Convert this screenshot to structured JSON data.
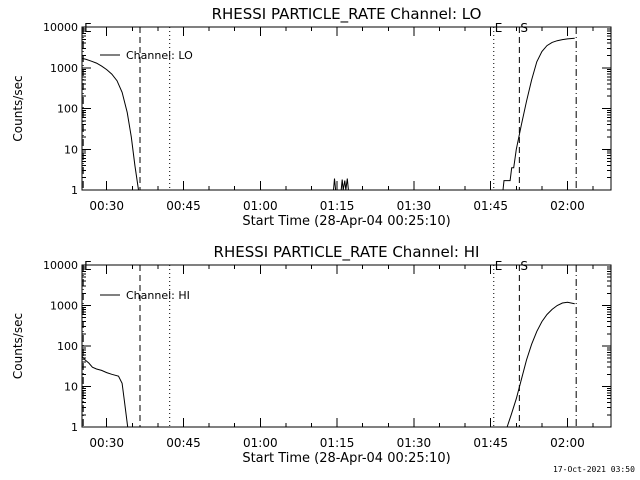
{
  "footer": {
    "timestamp": "17-Oct-2021 03:50"
  },
  "chart_data": [
    {
      "type": "line",
      "title": "RHESSI PARTICLE_RATE Channel: LO",
      "xlabel": "Start Time (28-Apr-04 00:25:10)",
      "ylabel": "Counts/sec",
      "yscale": "log",
      "xlim_minutes": [
        25.17,
        128.5
      ],
      "ylim": [
        1,
        10000
      ],
      "y_ticks": [
        1,
        10,
        100,
        1000,
        10000
      ],
      "y_tick_labels": [
        "1",
        "10",
        "100",
        "1000",
        "10000"
      ],
      "x_ticks_minutes": [
        30,
        45,
        60,
        75,
        90,
        105,
        120
      ],
      "x_tick_labels": [
        "00:30",
        "00:45",
        "01:00",
        "01:15",
        "01:30",
        "01:45",
        "02:00"
      ],
      "legend": {
        "label": "Channel: LO",
        "position": "top-left"
      },
      "markers": [
        {
          "label": "E",
          "x": 25.4,
          "style": "dashdot"
        },
        {
          "label": "",
          "x": 36.5,
          "style": "dashed"
        },
        {
          "label": "",
          "x": 42.3,
          "style": "dotted"
        },
        {
          "label": "E",
          "x": 105.6,
          "style": "dotted"
        },
        {
          "label": "S",
          "x": 110.6,
          "style": "dashed"
        },
        {
          "label": "",
          "x": 121.7,
          "style": "dashdot"
        }
      ],
      "series": [
        {
          "name": "Channel: LO",
          "segments": [
            [
              [
                25.2,
                1700
              ],
              [
                26,
                1600
              ],
              [
                27,
                1450
              ],
              [
                28,
                1300
              ],
              [
                29,
                1100
              ],
              [
                30,
                900
              ],
              [
                31,
                700
              ],
              [
                32,
                480
              ],
              [
                33,
                250
              ],
              [
                34,
                80
              ],
              [
                34.8,
                20
              ],
              [
                35.5,
                4
              ],
              [
                36.2,
                1
              ]
            ],
            [
              [
                74.3,
                1
              ],
              [
                74.5,
                1.9
              ],
              [
                74.7,
                1
              ]
            ],
            [
              [
                75.8,
                1
              ],
              [
                76,
                1.8
              ],
              [
                76.2,
                1
              ],
              [
                76.5,
                1.7
              ],
              [
                76.7,
                1
              ],
              [
                77,
                1.9
              ],
              [
                77.2,
                1
              ]
            ],
            [
              [
                107.4,
                1
              ],
              [
                107.6,
                1.7
              ],
              [
                108.8,
                1.7
              ],
              [
                109.1,
                3.5
              ],
              [
                109.5,
                3.5
              ],
              [
                110,
                10
              ],
              [
                111,
                40
              ],
              [
                112,
                150
              ],
              [
                113,
                500
              ],
              [
                114,
                1400
              ],
              [
                115,
                2500
              ],
              [
                116,
                3500
              ],
              [
                117,
                4200
              ],
              [
                118,
                4600
              ],
              [
                119,
                4900
              ],
              [
                120,
                5100
              ],
              [
                121.4,
                5300
              ]
            ]
          ]
        }
      ]
    },
    {
      "type": "line",
      "title": "RHESSI PARTICLE_RATE Channel: HI",
      "xlabel": "Start Time (28-Apr-04 00:25:10)",
      "ylabel": "Counts/sec",
      "yscale": "log",
      "xlim_minutes": [
        25.17,
        128.5
      ],
      "ylim": [
        1,
        10000
      ],
      "y_ticks": [
        1,
        10,
        100,
        1000,
        10000
      ],
      "y_tick_labels": [
        "1",
        "10",
        "100",
        "1000",
        "10000"
      ],
      "x_ticks_minutes": [
        30,
        45,
        60,
        75,
        90,
        105,
        120
      ],
      "x_tick_labels": [
        "00:30",
        "00:45",
        "01:00",
        "01:15",
        "01:30",
        "01:45",
        "02:00"
      ],
      "legend": {
        "label": "Channel: HI",
        "position": "top-left"
      },
      "markers": [
        {
          "label": "E",
          "x": 25.4,
          "style": "dashdot"
        },
        {
          "label": "",
          "x": 36.5,
          "style": "dashed"
        },
        {
          "label": "",
          "x": 42.3,
          "style": "dotted"
        },
        {
          "label": "E",
          "x": 105.6,
          "style": "dotted"
        },
        {
          "label": "S",
          "x": 110.6,
          "style": "dashed"
        },
        {
          "label": "",
          "x": 121.7,
          "style": "dashdot"
        }
      ],
      "series": [
        {
          "name": "Channel: HI",
          "segments": [
            [
              [
                25.2,
                55
              ],
              [
                25.8,
                45
              ],
              [
                26.5,
                38
              ],
              [
                27.2,
                30
              ],
              [
                28,
                27
              ],
              [
                29,
                25
              ],
              [
                30,
                22
              ],
              [
                31,
                20
              ],
              [
                32.3,
                18
              ],
              [
                33,
                12
              ],
              [
                33.5,
                4
              ],
              [
                34.1,
                1
              ]
            ],
            [
              [
                108.2,
                1
              ],
              [
                109,
                2
              ],
              [
                110,
                5
              ],
              [
                111,
                15
              ],
              [
                112,
                45
              ],
              [
                113,
                110
              ],
              [
                114,
                230
              ],
              [
                115,
                400
              ],
              [
                116,
                600
              ],
              [
                117,
                800
              ],
              [
                118,
                1000
              ],
              [
                119,
                1150
              ],
              [
                120,
                1200
              ],
              [
                121.4,
                1100
              ]
            ]
          ]
        }
      ]
    }
  ]
}
